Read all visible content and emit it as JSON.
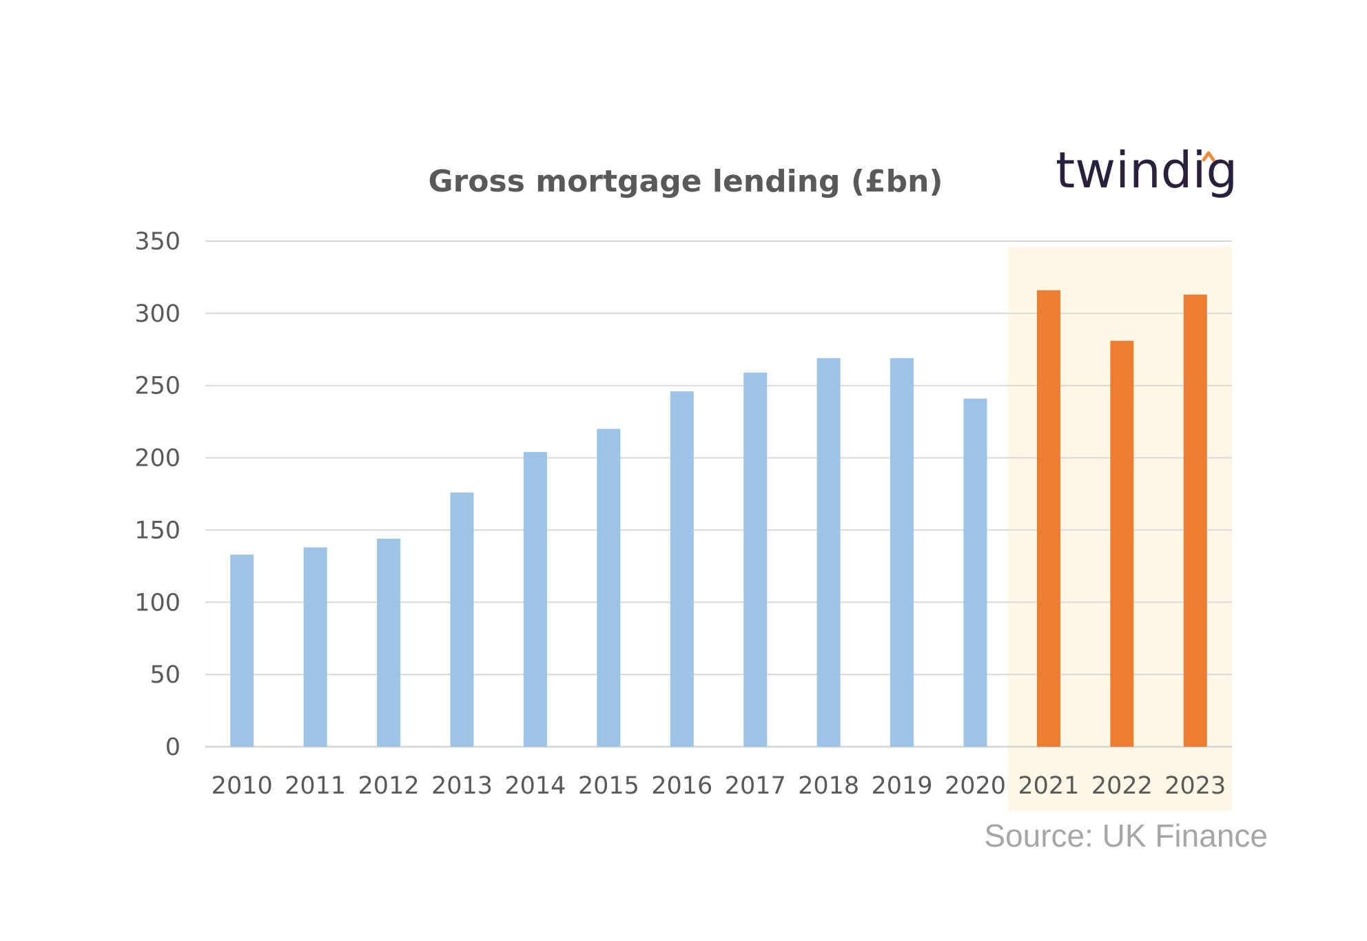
{
  "brand": {
    "name": "twindig",
    "text_color": "#2a1f3d",
    "accent_color": "#f08a3c",
    "icon": "roof-caret-icon"
  },
  "source_text": "Source: UK Finance",
  "chart_data": {
    "type": "bar",
    "title": "Gross mortgage lending (£bn)",
    "xlabel": "",
    "ylabel": "",
    "categories": [
      "2010",
      "2011",
      "2012",
      "2013",
      "2014",
      "2015",
      "2016",
      "2017",
      "2018",
      "2019",
      "2020",
      "2021",
      "2022",
      "2023"
    ],
    "values": [
      133,
      138,
      144,
      176,
      204,
      220,
      246,
      259,
      269,
      269,
      241,
      316,
      281,
      313
    ],
    "ylim": [
      0,
      350
    ],
    "yticks": [
      0,
      50,
      100,
      150,
      200,
      250,
      300,
      350
    ],
    "grid": true,
    "legend": "none",
    "colors": {
      "default_bar": "#9dc3e6",
      "highlight_bar": "#ed7d31",
      "highlight_background": "#fff7e5",
      "gridline": "#d9d9d9",
      "tick_text": "#595959"
    },
    "highlighted_categories": [
      "2021",
      "2022",
      "2023"
    ]
  }
}
